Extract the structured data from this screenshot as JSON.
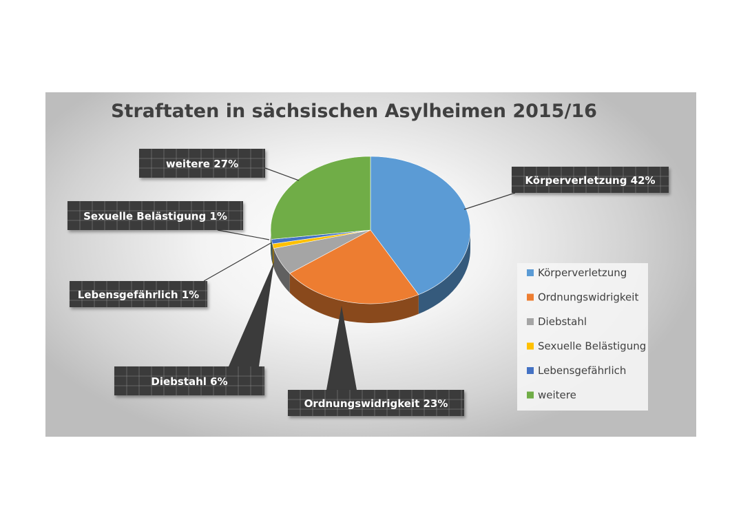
{
  "chart_data": {
    "type": "pie",
    "title": "Straftaten in sächsischen Asylheimen 2015/16",
    "slices": [
      {
        "label": "Körperverletzung",
        "value": 42,
        "color": "#5b9bd5",
        "callout": "Körperverletzung 42%"
      },
      {
        "label": "Ordnungswidrigkeit",
        "value": 23,
        "color": "#ed7d31",
        "callout": "Ordnungswidrigkeit 23%"
      },
      {
        "label": "Diebstahl",
        "value": 6,
        "color": "#a5a5a5",
        "callout": "Diebstahl 6%"
      },
      {
        "label": "Sexuelle Belästigung",
        "value": 1,
        "color": "#ffc000",
        "callout": "Sexuelle Belästigung 1%"
      },
      {
        "label": "Lebensgefährlich",
        "value": 1,
        "color": "#4472c4",
        "callout": "Lebensgefährlich 1%"
      },
      {
        "label": "weitere",
        "value": 27,
        "color": "#70ad47",
        "callout": "weitere 27%"
      }
    ],
    "legend": [
      "Körperverletzung",
      "Ordnungswidrigkeit",
      "Diebstahl",
      "Sexuelle Belästigung",
      "Lebensgefährlich",
      "weitere"
    ],
    "legend_position": "right",
    "style": "3d-pie"
  }
}
